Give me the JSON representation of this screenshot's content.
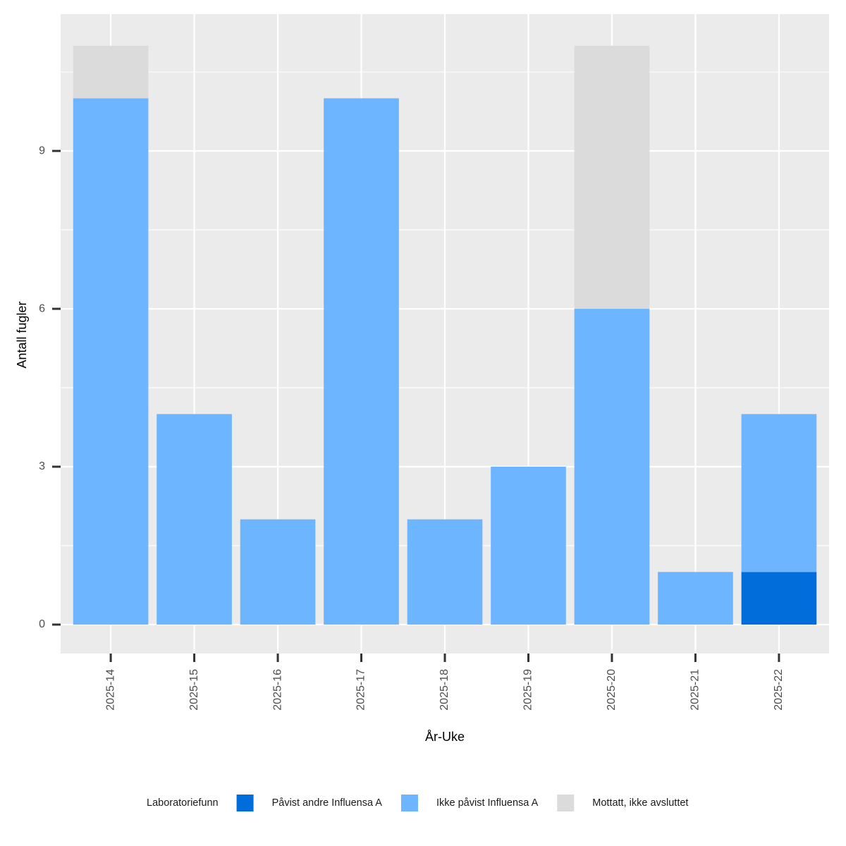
{
  "chart_data": {
    "type": "bar",
    "stacked": true,
    "x_label": "År-Uke",
    "y_label": "Antall fugler",
    "categories": [
      "2025-14",
      "2025-15",
      "2025-16",
      "2025-17",
      "2025-18",
      "2025-19",
      "2025-20",
      "2025-21",
      "2025-22"
    ],
    "series": [
      {
        "name": "Påvist andre Influensa A",
        "color": "#006ddb",
        "values": [
          0,
          0,
          0,
          0,
          0,
          0,
          0,
          0,
          1
        ]
      },
      {
        "name": "Ikke påvist Influensa A",
        "color": "#6db6ff",
        "values": [
          10,
          4,
          2,
          10,
          2,
          3,
          6,
          1,
          3
        ]
      },
      {
        "name": "Mottatt, ikke avsluttet",
        "color": "#dbdbdb",
        "values": [
          1,
          0,
          0,
          0,
          0,
          0,
          5,
          0,
          0
        ]
      }
    ],
    "legend_title": "Laboratoriefunn",
    "legend_position": "bottom",
    "ylim": [
      -0.55,
      11.6
    ],
    "yticks": [
      0,
      3,
      6,
      9
    ],
    "grid": true
  }
}
